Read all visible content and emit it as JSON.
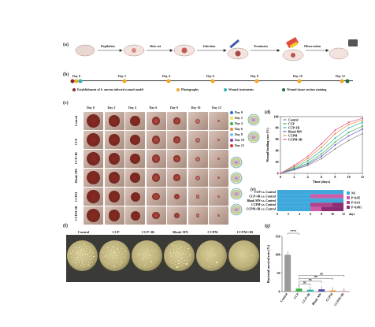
{
  "panel_a": {
    "letter": "(a)",
    "steps": [
      "Depilation",
      "Skin cut",
      "Infection",
      "Treatment",
      "Observation"
    ]
  },
  "panel_b": {
    "letter": "(b)",
    "days": [
      "Day 0",
      "Day 2",
      "Day 4",
      "Day 6",
      "Day 8",
      "Day 10",
      "Day 12"
    ],
    "legend": [
      {
        "label": "Establishment of S. aureus infected wound model",
        "color": "#7b2d26"
      },
      {
        "label": "Photography",
        "color": "#f5a623"
      },
      {
        "label": "Wound treatments",
        "color": "#2bb5a8"
      },
      {
        "label": "Wound tissue section staining",
        "color": "#1f6b3a"
      }
    ]
  },
  "panel_c": {
    "letter": "(c)",
    "columns": [
      "Day 0",
      "Day 2",
      "Day 4",
      "Day 6",
      "Day 8",
      "Day 10",
      "Day 12"
    ],
    "rows": [
      "Control",
      "CCP",
      "CCP+IR",
      "Blank MN",
      "CCPM",
      "CCPM+IR"
    ],
    "legend": [
      {
        "label": "Day 0",
        "color": "#2a6fd6"
      },
      {
        "label": "Day 2",
        "color": "#f3e34a"
      },
      {
        "label": "Day 4",
        "color": "#3cb24a"
      },
      {
        "label": "Day 6",
        "color": "#f08a2a"
      },
      {
        "label": "Day 8",
        "color": "#7cc6e8"
      },
      {
        "label": "Day 10",
        "color": "#8e3ea8"
      },
      {
        "label": "Day 12",
        "color": "#d6322a"
      }
    ]
  },
  "panel_d": {
    "letter": "(d)",
    "chart_data": {
      "type": "line",
      "xlabel": "Time (days)",
      "ylabel": "Wound healing rate (%)",
      "x": [
        0,
        2,
        4,
        6,
        8,
        10,
        12
      ],
      "xlim": [
        0,
        12
      ],
      "ylim": [
        0,
        100
      ],
      "yticks": [
        0,
        20,
        40,
        60,
        80,
        100
      ],
      "legend_position": "top-left",
      "series": [
        {
          "name": "Control",
          "color": "#8a8a8a",
          "values": [
            0,
            6,
            14,
            26,
            43,
            58,
            70
          ]
        },
        {
          "name": "CCP",
          "color": "#3cb24a",
          "values": [
            0,
            8,
            18,
            34,
            55,
            72,
            83
          ]
        },
        {
          "name": "CCP+IR",
          "color": "#2bb5a8",
          "values": [
            0,
            10,
            22,
            40,
            62,
            80,
            90
          ]
        },
        {
          "name": "Blank MN",
          "color": "#6a5acd",
          "values": [
            0,
            7,
            16,
            30,
            50,
            66,
            78
          ]
        },
        {
          "name": "CCPM",
          "color": "#f08a2a",
          "values": [
            0,
            12,
            26,
            46,
            70,
            86,
            94
          ]
        },
        {
          "name": "CCPM+IR",
          "color": "#e0548c",
          "values": [
            0,
            14,
            30,
            52,
            76,
            90,
            97
          ]
        }
      ]
    }
  },
  "panel_e": {
    "letter": "(e)",
    "chart_data": {
      "type": "heatmap",
      "rows": [
        "CCP v.s. Control",
        "CCP+IR v.s. Control",
        "Blank MN v.s. Control",
        "CCPM v.s. Control",
        "CCPM+IR v.s. Control"
      ],
      "x": [
        0,
        2,
        4,
        6,
        8,
        10,
        12
      ],
      "xlabel": "days",
      "legend": [
        {
          "label": "NS",
          "color": "#3fa8dc"
        },
        {
          "label": "P<0.05",
          "color": "#cc5ca8"
        },
        {
          "label": "P<0.01",
          "color": "#b0458f"
        },
        {
          "label": "P<0.001",
          "color": "#8a2d72"
        }
      ],
      "cells": [
        [
          "NS",
          "NS",
          "NS",
          "NS",
          "NS",
          "NS"
        ],
        [
          "NS",
          "NS",
          "NS",
          "P<0.05",
          "P<0.05",
          "P<0.05"
        ],
        [
          "NS",
          "NS",
          "NS",
          "NS",
          "NS",
          "NS"
        ],
        [
          "NS",
          "NS",
          "NS",
          "P<0.01",
          "P<0.01",
          "P<0.001"
        ],
        [
          "NS",
          "NS",
          "NS",
          "P<0.05",
          "P<0.001",
          "P<0.001"
        ]
      ]
    }
  },
  "panel_f": {
    "letter": "(f)",
    "labels": [
      "Control",
      "CCP",
      "CCP+IR",
      "Blank MN",
      "CCPM",
      "CCPM+IR"
    ],
    "colony_density": [
      1.0,
      0.45,
      0.15,
      0.7,
      0.12,
      0.02
    ]
  },
  "panel_g": {
    "letter": "(g)",
    "chart_data": {
      "type": "bar",
      "categories": [
        "Control",
        "CCP",
        "CCP+IR",
        "Blank MN",
        "CCPM",
        "CCPM+IR"
      ],
      "values": [
        100,
        8,
        5,
        6,
        3,
        1
      ],
      "colors": [
        "#9a9a9a",
        "#3cb24a",
        "#2bb5a8",
        "#4a4aa8",
        "#f08a2a",
        "#e0548c"
      ],
      "ylabel": "Bacterial survival rate (%)",
      "ylim": [
        0,
        150
      ],
      "yticks": [
        0,
        50,
        100,
        150
      ],
      "annotations": [
        "****",
        "ns",
        "ns",
        "ns",
        "ns"
      ]
    }
  }
}
